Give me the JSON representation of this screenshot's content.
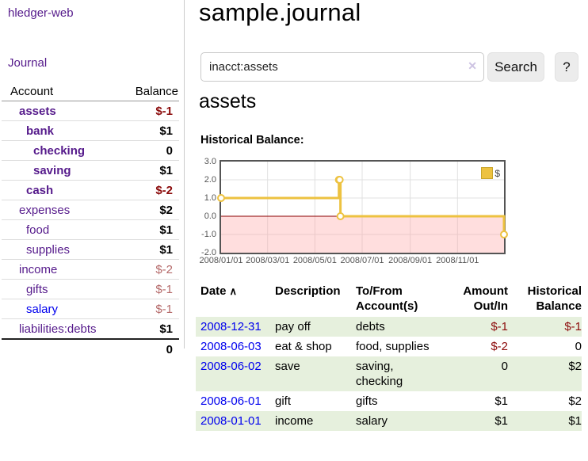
{
  "app": {
    "brand": "hledger-web",
    "nav_journal": "Journal"
  },
  "colors": {
    "link_visited": "#551a8b",
    "link_unvisited": "#0000ee",
    "negative_strong": "#8b0b0b",
    "negative_soft": "#b56a6a",
    "row_stripe_green": "#e6f0dd",
    "series_yellow": "#edc240",
    "zero_line": "#8b0000",
    "grid": "#e0e0e0",
    "plot_border": "#545454"
  },
  "sidebar": {
    "header": {
      "account": "Account",
      "balance": "Balance"
    },
    "accounts": [
      {
        "name": "assets",
        "depth": 1,
        "balance": "$-1",
        "matched": true,
        "neg": "strong"
      },
      {
        "name": "bank",
        "depth": 2,
        "balance": "$1",
        "matched": true,
        "neg": "none"
      },
      {
        "name": "checking",
        "depth": 3,
        "balance": "0",
        "matched": true,
        "neg": "none"
      },
      {
        "name": "saving",
        "depth": 3,
        "balance": "$1",
        "matched": true,
        "neg": "none"
      },
      {
        "name": "cash",
        "depth": 2,
        "balance": "$-2",
        "matched": true,
        "neg": "strong"
      },
      {
        "name": "expenses",
        "depth": 1,
        "balance": "$2",
        "matched": false,
        "neg": "none"
      },
      {
        "name": "food",
        "depth": 2,
        "balance": "$1",
        "matched": false,
        "neg": "none"
      },
      {
        "name": "supplies",
        "depth": 2,
        "balance": "$1",
        "matched": false,
        "neg": "none"
      },
      {
        "name": "income",
        "depth": 1,
        "balance": "$-2",
        "matched": false,
        "neg": "soft"
      },
      {
        "name": "gifts",
        "depth": 2,
        "balance": "$-1",
        "matched": false,
        "neg": "soft"
      },
      {
        "name": "salary",
        "depth": 2,
        "balance": "$-1",
        "matched": false,
        "neg": "soft",
        "unvisited": true
      },
      {
        "name": "liabilities:debts",
        "depth": 1,
        "balance": "$1",
        "matched": false,
        "neg": "none"
      }
    ],
    "total": "0"
  },
  "header": {
    "title": "sample.journal"
  },
  "search": {
    "value": "inacct:assets",
    "clear_icon": "✕",
    "button_label": "Search",
    "help_label": "?"
  },
  "account_page": {
    "heading": "assets",
    "chart_label": "Historical Balance:"
  },
  "chart_data": {
    "type": "line",
    "steps": true,
    "title": "Historical Balance",
    "series": [
      {
        "name": "$",
        "color": "#edc240",
        "points": [
          [
            "2008-01-01",
            1
          ],
          [
            "2008-06-01",
            2
          ],
          [
            "2008-06-02",
            2
          ],
          [
            "2008-06-03",
            0
          ],
          [
            "2008-12-31",
            -1
          ]
        ]
      }
    ],
    "xrange": [
      "2008-01-01",
      "2008-12-31"
    ],
    "ylim": [
      -2,
      3
    ],
    "yticks": [
      "3.0",
      "2.0",
      "1.0",
      "0.0",
      "-1.0",
      "-2.0"
    ],
    "ytick_values": [
      3,
      2,
      1,
      0,
      -1,
      -2
    ],
    "xticks": [
      "2008/01/01",
      "2008/03/01",
      "2008/05/01",
      "2008/07/01",
      "2008/09/01",
      "2008/11/01"
    ],
    "grid": true,
    "negative_region_shaded": true,
    "legend": {
      "position": "top-right",
      "label": "$"
    }
  },
  "register": {
    "columns": [
      "Date",
      "Description",
      "To/From Account(s)",
      "Amount Out/In",
      "Historical Balance"
    ],
    "sort": {
      "column": "Date",
      "direction": "asc",
      "icon": "∧"
    },
    "rows": [
      {
        "date": "2008-12-31",
        "description": "pay off",
        "accounts": "debts",
        "amount": "$-1",
        "balance": "$-1"
      },
      {
        "date": "2008-06-03",
        "description": "eat & shop",
        "accounts": "food, supplies",
        "amount": "$-2",
        "balance": "0"
      },
      {
        "date": "2008-06-02",
        "description": "save",
        "accounts": "saving, checking",
        "amount": "0",
        "balance": "$2"
      },
      {
        "date": "2008-06-01",
        "description": "gift",
        "accounts": "gifts",
        "amount": "$1",
        "balance": "$2"
      },
      {
        "date": "2008-01-01",
        "description": "income",
        "accounts": "salary",
        "amount": "$1",
        "balance": "$1"
      }
    ]
  }
}
